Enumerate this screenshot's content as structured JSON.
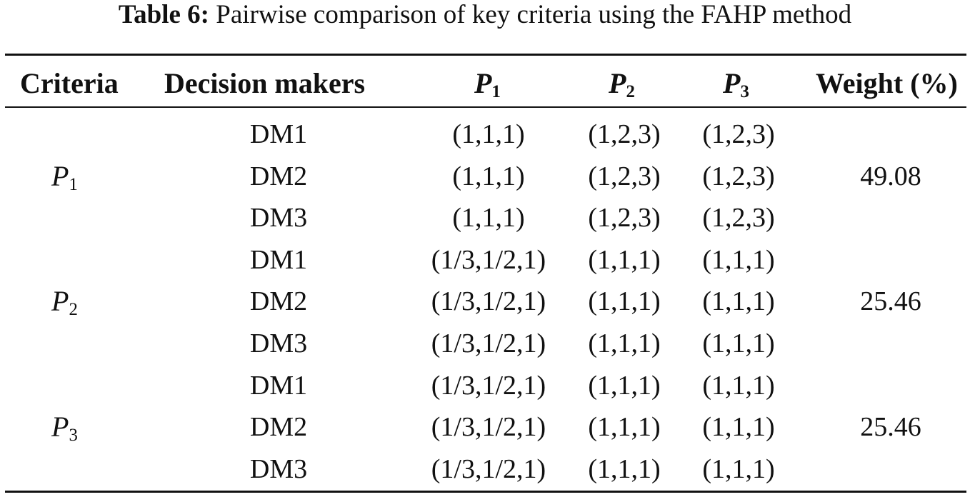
{
  "caption": {
    "label": "Table 6:",
    "text": "Pairwise comparison of key criteria using the FAHP method"
  },
  "headers": {
    "criteria": "Criteria",
    "decision_makers": "Decision makers",
    "p1": {
      "var": "P",
      "sub": "1"
    },
    "p2": {
      "var": "P",
      "sub": "2"
    },
    "p3": {
      "var": "P",
      "sub": "3"
    },
    "weight": "Weight (%)"
  },
  "groups": [
    {
      "criteria": {
        "var": "P",
        "sub": "1"
      },
      "weight": "49.08",
      "rows": [
        {
          "dm": "DM1",
          "p1": "(1,1,1)",
          "p2": "(1,2,3)",
          "p3": "(1,2,3)"
        },
        {
          "dm": "DM2",
          "p1": "(1,1,1)",
          "p2": "(1,2,3)",
          "p3": "(1,2,3)"
        },
        {
          "dm": "DM3",
          "p1": "(1,1,1)",
          "p2": "(1,2,3)",
          "p3": "(1,2,3)"
        }
      ]
    },
    {
      "criteria": {
        "var": "P",
        "sub": "2"
      },
      "weight": "25.46",
      "rows": [
        {
          "dm": "DM1",
          "p1": "(1/3,1/2,1)",
          "p2": "(1,1,1)",
          "p3": "(1,1,1)"
        },
        {
          "dm": "DM2",
          "p1": "(1/3,1/2,1)",
          "p2": "(1,1,1)",
          "p3": "(1,1,1)"
        },
        {
          "dm": "DM3",
          "p1": "(1/3,1/2,1)",
          "p2": "(1,1,1)",
          "p3": "(1,1,1)"
        }
      ]
    },
    {
      "criteria": {
        "var": "P",
        "sub": "3"
      },
      "weight": "25.46",
      "rows": [
        {
          "dm": "DM1",
          "p1": "(1/3,1/2,1)",
          "p2": "(1,1,1)",
          "p3": "(1,1,1)"
        },
        {
          "dm": "DM2",
          "p1": "(1/3,1/2,1)",
          "p2": "(1,1,1)",
          "p3": "(1,1,1)"
        },
        {
          "dm": "DM3",
          "p1": "(1/3,1/2,1)",
          "p2": "(1,1,1)",
          "p3": "(1,1,1)"
        }
      ]
    }
  ]
}
